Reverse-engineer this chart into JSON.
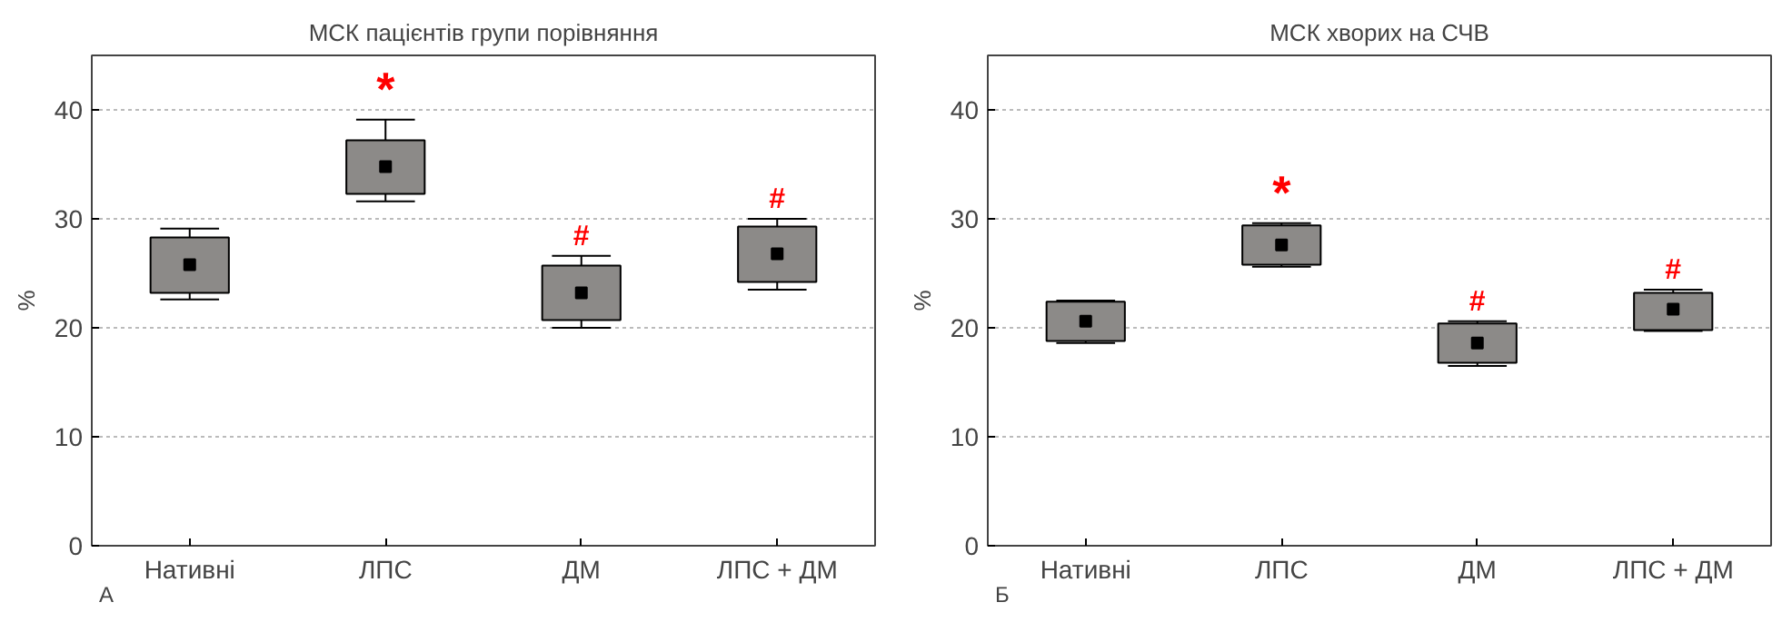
{
  "chart_data": [
    {
      "type": "box",
      "title": "МСК пацієнтів групи порівняння",
      "ylabel": "%",
      "categories": [
        "Нативні",
        "ЛПС",
        "ДМ",
        "ЛПС + ДМ"
      ],
      "color": "#8c8a88",
      "ylim": [
        0,
        45
      ],
      "yticks": [
        0,
        10,
        20,
        30,
        40
      ],
      "grid": "y",
      "marker": "square",
      "boxes": [
        {
          "low": 22.6,
          "q1": 23.2,
          "median": 25.8,
          "q3": 28.3,
          "high": 29.1
        },
        {
          "low": 31.6,
          "q1": 32.3,
          "median": 34.8,
          "q3": 37.2,
          "high": 39.1
        },
        {
          "low": 20.0,
          "q1": 20.7,
          "median": 23.2,
          "q3": 25.7,
          "high": 26.6
        },
        {
          "low": 23.5,
          "q1": 24.2,
          "median": 26.8,
          "q3": 29.3,
          "high": 30.0
        }
      ],
      "annotations": [
        "А",
        {
          "text": "*",
          "x": "ЛПС",
          "y": 39.1
        },
        {
          "text": "#",
          "x": "ДМ",
          "y": 26.6
        },
        {
          "text": "#",
          "x": "ЛПС + ДМ",
          "y": 30.0
        }
      ]
    },
    {
      "type": "box",
      "title": "МСК хворих на СЧВ",
      "ylabel": "%",
      "categories": [
        "Нативні",
        "ЛПС",
        "ДМ",
        "ЛПС + ДМ"
      ],
      "color": "#8c8a88",
      "ylim": [
        0,
        45
      ],
      "yticks": [
        0,
        10,
        20,
        30,
        40
      ],
      "grid": "y",
      "marker": "square",
      "boxes": [
        {
          "low": 18.6,
          "q1": 18.8,
          "median": 20.6,
          "q3": 22.4,
          "high": 22.5
        },
        {
          "low": 25.6,
          "q1": 25.8,
          "median": 27.6,
          "q3": 29.4,
          "high": 29.6
        },
        {
          "low": 16.5,
          "q1": 16.8,
          "median": 18.6,
          "q3": 20.4,
          "high": 20.6
        },
        {
          "low": 19.7,
          "q1": 19.8,
          "median": 21.7,
          "q3": 23.2,
          "high": 23.5
        }
      ],
      "annotations": [
        "Б",
        {
          "text": "*",
          "x": "ЛПС",
          "y": 29.6
        },
        {
          "text": "#",
          "x": "ДМ",
          "y": 20.6
        },
        {
          "text": "#",
          "x": "ЛПС + ДМ",
          "y": 23.5
        }
      ]
    }
  ]
}
